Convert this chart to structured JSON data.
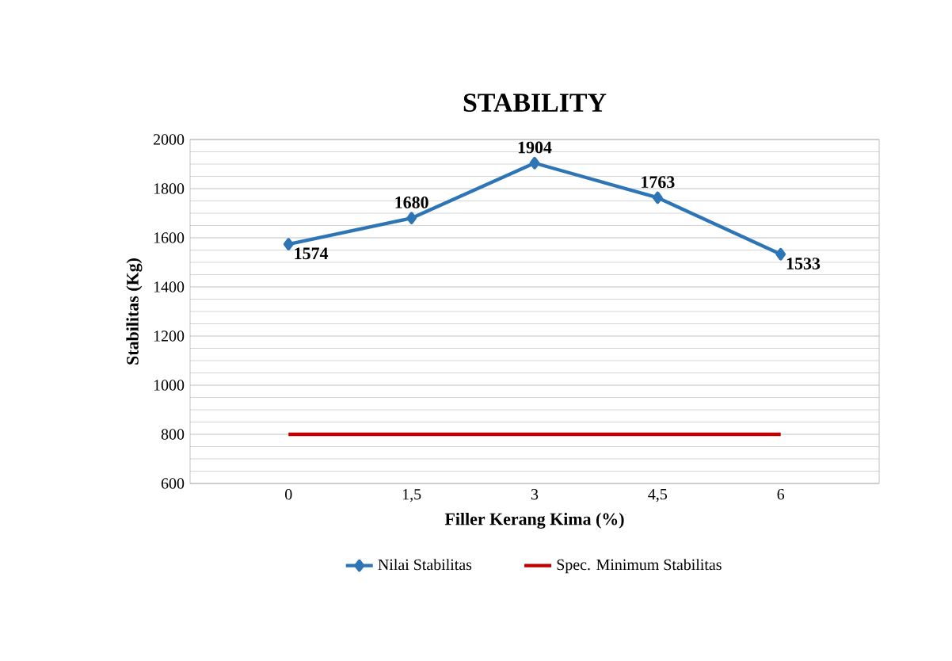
{
  "chart_data": {
    "type": "line",
    "title": "STABILITY",
    "xlabel": "Filler Kerang Kima (%)",
    "ylabel": "Stabilitas (Kg)",
    "categories": [
      "0",
      "1,5",
      "3",
      "4,5",
      "6"
    ],
    "series": [
      {
        "name": "Nilai Stabilitas",
        "color": "#2e75b6",
        "values": [
          1574,
          1680,
          1904,
          1763,
          1533
        ],
        "value_labels": [
          "1574",
          "1680",
          "1904",
          "1763",
          "1533"
        ],
        "marker": "diamond"
      },
      {
        "name": "Spec. Minimum Stabilitas",
        "color": "#c00000",
        "values": [
          800,
          800,
          800,
          800,
          800
        ],
        "marker": "none"
      }
    ],
    "ylim": [
      600,
      2000
    ],
    "yticks": [
      600,
      800,
      1000,
      1200,
      1400,
      1600,
      1800,
      2000
    ],
    "grid": "y",
    "legend": "bottom",
    "line_style": "solid"
  }
}
